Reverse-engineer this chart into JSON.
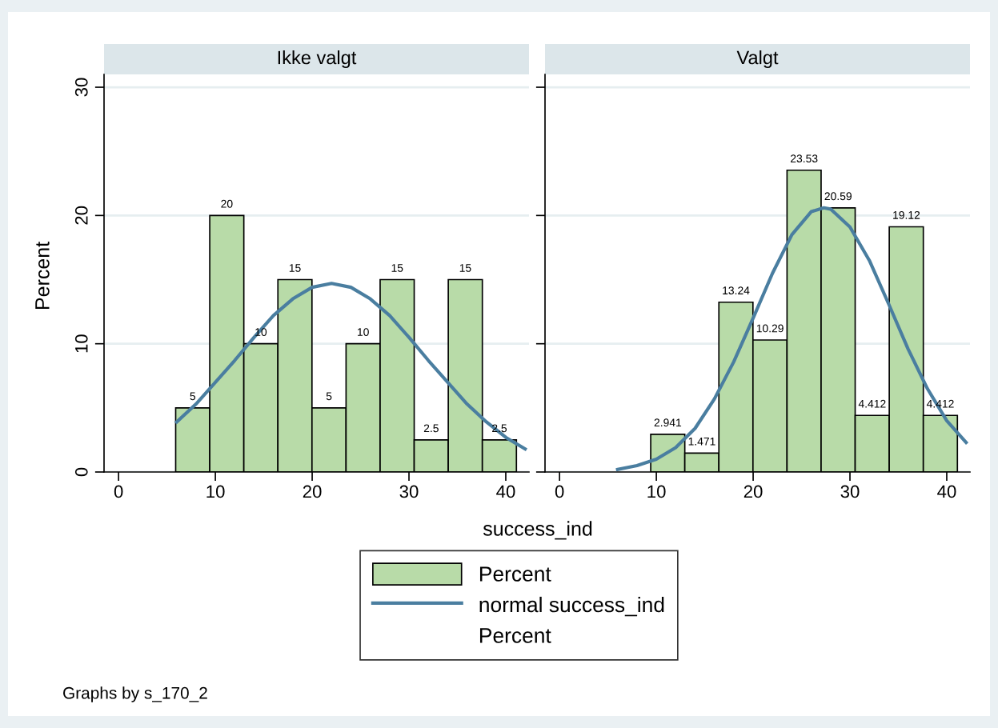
{
  "chart_data": [
    {
      "type": "histogram",
      "title": "Ikke valgt",
      "xlabel": "success_ind",
      "ylabel": "Percent",
      "annotations": [
        "Graphs by s_170_2",
        "Percent"
      ],
      "legend": "bottom",
      "grid": "y",
      "xlim": [
        -1.5,
        42.4
      ],
      "xticks": [
        0,
        10,
        20,
        30,
        40
      ],
      "ylim": [
        0,
        31
      ],
      "yticks": [
        0,
        10,
        20,
        30
      ],
      "series": [
        {
          "name": "Percent",
          "color": "#b8dba8",
          "bins": [
            5.9,
            9.42,
            12.94,
            16.46,
            19.98,
            23.5,
            27.02,
            30.54,
            34.06,
            37.58,
            41.1
          ],
          "values": [
            5,
            20,
            10,
            15,
            5,
            10,
            15,
            2.5,
            15,
            2.5
          ],
          "value_labels": [
            "5",
            "20",
            "10",
            "15",
            "5",
            "10",
            "15",
            "2.5",
            "15",
            "2.5"
          ]
        },
        {
          "type": "line",
          "name": "normal success_ind",
          "color": "#4a7ea0",
          "x": [
            6,
            8,
            10,
            12,
            14,
            16,
            18,
            20,
            22,
            24,
            26,
            28,
            30,
            32,
            34,
            36,
            38,
            40,
            42
          ],
          "values": [
            3.9,
            5.3,
            7.0,
            8.7,
            10.5,
            12.2,
            13.5,
            14.4,
            14.7,
            14.4,
            13.5,
            12.2,
            10.5,
            8.7,
            7.0,
            5.3,
            3.9,
            2.7,
            1.8
          ]
        }
      ]
    },
    {
      "type": "histogram",
      "title": "Valgt",
      "grid": "y",
      "tick_labels": "x",
      "xlim": [
        -1.5,
        42.4
      ],
      "xticks": [
        0,
        10,
        20,
        30,
        40
      ],
      "ylim": [
        0,
        31
      ],
      "yticks": [
        0,
        10,
        20,
        30
      ],
      "series": [
        {
          "color": "#b8dba8",
          "bins": [
            9.42,
            12.94,
            16.46,
            19.98,
            23.5,
            27.02,
            30.54,
            34.06,
            37.58,
            41.1
          ],
          "values": [
            2.941,
            1.471,
            13.24,
            10.29,
            23.53,
            20.59,
            4.412,
            19.12,
            4.412
          ],
          "value_labels": [
            "2.941",
            "1.471",
            "13.24",
            "10.29",
            "23.53",
            "20.59",
            "4.412",
            "19.12",
            "4.412"
          ]
        },
        {
          "type": "line",
          "color": "#4a7ea0",
          "x": [
            6,
            8,
            10,
            12,
            14,
            16,
            18,
            20,
            22,
            24,
            26,
            27.3,
            28,
            30,
            32,
            34,
            36,
            38,
            40,
            42
          ],
          "values": [
            0.2,
            0.5,
            1.0,
            1.9,
            3.4,
            5.7,
            8.6,
            12.0,
            15.5,
            18.5,
            20.3,
            20.6,
            20.5,
            19.1,
            16.5,
            13.1,
            9.6,
            6.5,
            4.0,
            2.3
          ]
        }
      ]
    }
  ]
}
